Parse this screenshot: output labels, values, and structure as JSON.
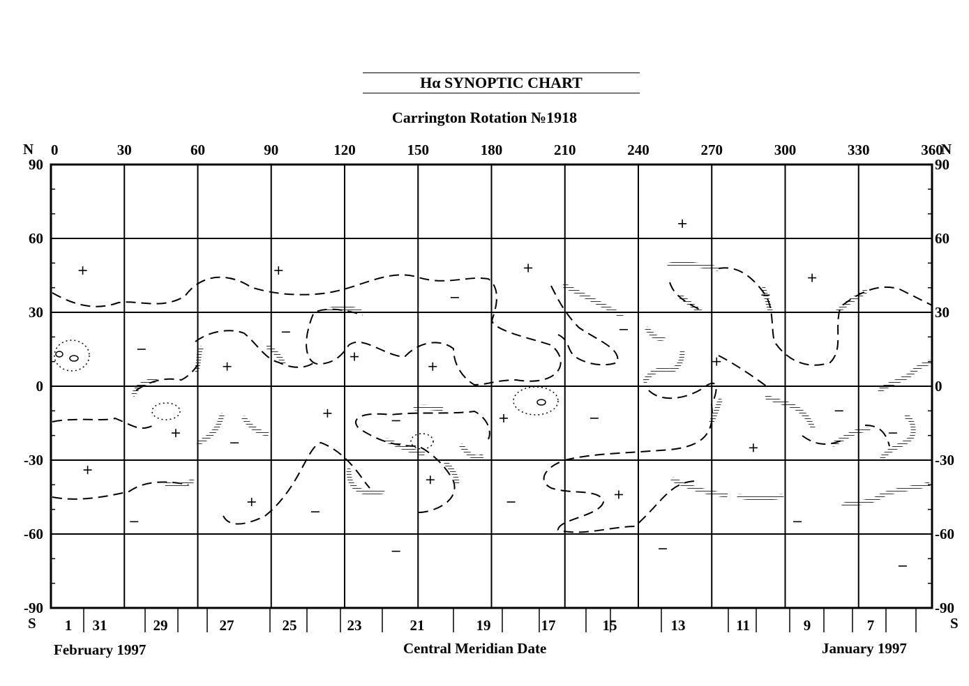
{
  "title": "Hα  SYNOPTIC CHART",
  "subtitle": "Carrington  Rotation    №1918",
  "axis": {
    "north_label": "N",
    "south_label": "S",
    "longitude_ticks": [
      "0",
      "30",
      "60",
      "90",
      "120",
      "150",
      "180",
      "210",
      "240",
      "270",
      "300",
      "330",
      "360"
    ],
    "latitude_ticks": [
      "90",
      "60",
      "30",
      "0",
      "-30",
      "-60",
      "-90"
    ]
  },
  "date_ticks": [
    "1",
    "31",
    "29",
    "27",
    "25",
    "23",
    "21",
    "19",
    "17",
    "15",
    "13",
    "11",
    "9",
    "7"
  ],
  "footer": {
    "left": "February 1997",
    "center": "Central Meridian Date",
    "right": "January 1997"
  },
  "polarity": {
    "plus": [
      [
        13,
        47
      ],
      [
        15,
        -34
      ],
      [
        93,
        47
      ],
      [
        72,
        8
      ],
      [
        51,
        -19
      ],
      [
        82,
        -47
      ],
      [
        113,
        -11
      ],
      [
        124,
        12
      ],
      [
        156,
        8
      ],
      [
        155,
        -38
      ],
      [
        185,
        -13
      ],
      [
        195,
        48
      ],
      [
        258,
        66
      ],
      [
        232,
        -44
      ],
      [
        272,
        10
      ],
      [
        287,
        -25
      ],
      [
        311,
        44
      ]
    ],
    "minus": [
      [
        37,
        15
      ],
      [
        34,
        -55
      ],
      [
        75,
        -23
      ],
      [
        96,
        22
      ],
      [
        108,
        -51
      ],
      [
        141,
        -14
      ],
      [
        165,
        36
      ],
      [
        141,
        -67
      ],
      [
        188,
        -47
      ],
      [
        222,
        -13
      ],
      [
        234,
        23
      ],
      [
        250,
        -66
      ],
      [
        292,
        37
      ],
      [
        322,
        -10
      ],
      [
        305,
        -55
      ],
      [
        344,
        -19
      ],
      [
        348,
        -73
      ]
    ]
  },
  "legend_icons": {
    "boundary": "dashed-boundary-line",
    "filament": "hatched-filament-icon"
  }
}
